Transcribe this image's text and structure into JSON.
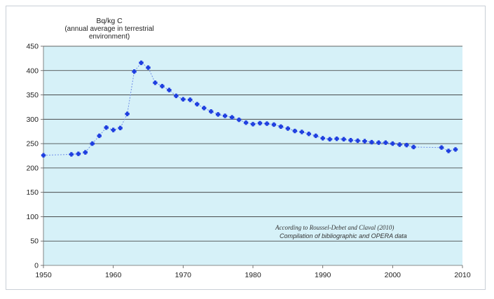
{
  "chart_data": {
    "type": "line",
    "ylabel_unit": "Bq/kg C",
    "ylabel_detail_1": "(annual average in terrestrial",
    "ylabel_detail_2": "environment)",
    "xlabel": "",
    "xlim": [
      1950,
      2010
    ],
    "ylim": [
      0,
      450
    ],
    "x_ticks": [
      1950,
      1960,
      1970,
      1980,
      1990,
      2000,
      2010
    ],
    "y_ticks": [
      0,
      50,
      100,
      150,
      200,
      250,
      300,
      350,
      400,
      450
    ],
    "grid": "horizontal",
    "annotation_line1": "According to Roussel-Debet and Claval (2010)",
    "annotation_line2": "Compilation of bibliographic and OPERA data",
    "colors": {
      "plot_background": "#d6f1f8",
      "marker": "#1f3fe0",
      "line": "#6f8ee8",
      "grid": "#333333"
    },
    "series": [
      {
        "x": [
          1950,
          1954,
          1955,
          1956,
          1957,
          1958,
          1959,
          1960,
          1961,
          1962,
          1963,
          1964,
          1965,
          1966,
          1967,
          1968,
          1969,
          1970,
          1971,
          1972,
          1973,
          1974,
          1975,
          1976,
          1977,
          1978,
          1979,
          1980,
          1981,
          1982,
          1983,
          1984,
          1985,
          1986,
          1987,
          1988,
          1989,
          1990,
          1991,
          1992,
          1993,
          1994,
          1995,
          1996,
          1997,
          1998,
          1999,
          2000,
          2001,
          2002,
          2003,
          2007,
          2008,
          2009
        ],
        "y": [
          226,
          228,
          229,
          232,
          250,
          266,
          283,
          278,
          282,
          311,
          398,
          416,
          406,
          375,
          368,
          360,
          348,
          341,
          340,
          331,
          323,
          316,
          310,
          307,
          304,
          299,
          293,
          290,
          292,
          291,
          289,
          285,
          281,
          276,
          274,
          270,
          266,
          261,
          259,
          260,
          259,
          257,
          256,
          255,
          253,
          252,
          252,
          250,
          248,
          247,
          243,
          242,
          235,
          238
        ]
      }
    ]
  }
}
